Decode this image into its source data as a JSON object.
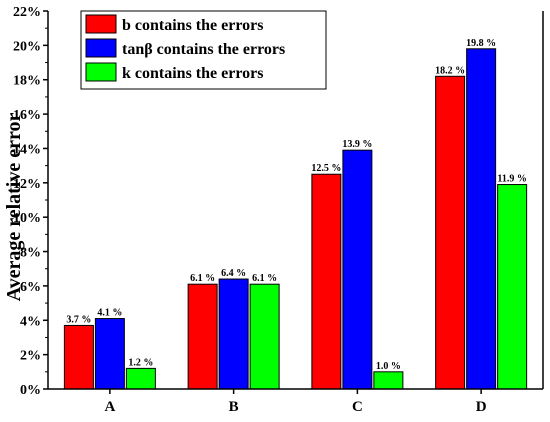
{
  "chart_data": {
    "type": "bar",
    "categories": [
      "A",
      "B",
      "C",
      "D"
    ],
    "series": [
      {
        "name": "b contains the errors",
        "color": "#ff0000",
        "values": [
          3.7,
          6.1,
          12.5,
          18.2
        ],
        "labels": [
          "3.7 %",
          "6.1 %",
          "12.5 %",
          "18.2 %"
        ]
      },
      {
        "name": "tanβ contains the errors",
        "color": "#0000ff",
        "values": [
          4.1,
          6.4,
          13.9,
          19.8
        ],
        "labels": [
          "4.1 %",
          "6.4 %",
          "13.9 %",
          "19.8 %"
        ]
      },
      {
        "name": "k contains the errors",
        "color": "#00ff00",
        "values": [
          1.2,
          6.1,
          1.0,
          11.9
        ],
        "labels": [
          "1.2 %",
          "6.1 %",
          "1.0 %",
          "11.9 %"
        ]
      }
    ],
    "xlabel": "",
    "ylabel": "Average relative error",
    "ylim": [
      0,
      22
    ],
    "yticks": [
      "0%",
      "2%",
      "4%",
      "6%",
      "8%",
      "10%",
      "12%",
      "14%",
      "16%",
      "18%",
      "20%",
      "22%"
    ],
    "legend_position": "top-left",
    "grid": false
  }
}
